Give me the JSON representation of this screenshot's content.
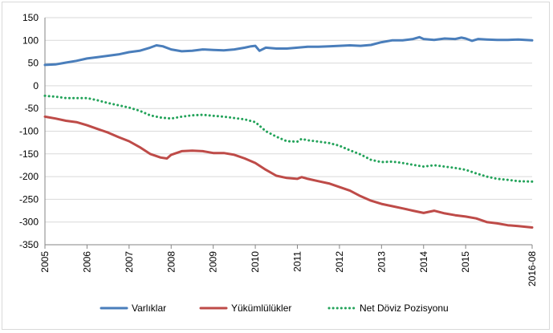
{
  "chart_data": {
    "type": "line",
    "title": "",
    "xlabel": "",
    "ylabel": "",
    "ylim": [
      -350,
      150
    ],
    "yticks": [
      150,
      100,
      50,
      0,
      -50,
      -100,
      -150,
      -200,
      -250,
      -300,
      -350
    ],
    "xlim": [
      2005.0,
      2016.58
    ],
    "xticks": [
      {
        "value": 2005,
        "label": "2005"
      },
      {
        "value": 2006,
        "label": "2006"
      },
      {
        "value": 2007,
        "label": "2007"
      },
      {
        "value": 2008,
        "label": "2008"
      },
      {
        "value": 2009,
        "label": "2009"
      },
      {
        "value": 2010,
        "label": "2010"
      },
      {
        "value": 2011,
        "label": "2011"
      },
      {
        "value": 2012,
        "label": "2012"
      },
      {
        "value": 2013,
        "label": "2013"
      },
      {
        "value": 2014,
        "label": "2014"
      },
      {
        "value": 2015,
        "label": "2015"
      },
      {
        "value": 2016.58,
        "label": "2016-08"
      }
    ],
    "grid": "horizontal",
    "legend_position": "bottom",
    "series": [
      {
        "name": "Varlıklar",
        "color": "#4a7ebb",
        "style": "solid",
        "points": [
          [
            2005.0,
            46
          ],
          [
            2005.25,
            47
          ],
          [
            2005.5,
            51
          ],
          [
            2005.75,
            55
          ],
          [
            2006.0,
            60
          ],
          [
            2006.25,
            63
          ],
          [
            2006.5,
            66
          ],
          [
            2006.75,
            69
          ],
          [
            2007.0,
            74
          ],
          [
            2007.25,
            77
          ],
          [
            2007.5,
            84
          ],
          [
            2007.65,
            89
          ],
          [
            2007.8,
            87
          ],
          [
            2008.0,
            80
          ],
          [
            2008.25,
            76
          ],
          [
            2008.5,
            77
          ],
          [
            2008.75,
            80
          ],
          [
            2009.0,
            79
          ],
          [
            2009.25,
            78
          ],
          [
            2009.5,
            80
          ],
          [
            2009.75,
            84
          ],
          [
            2009.9,
            87
          ],
          [
            2010.0,
            88
          ],
          [
            2010.1,
            77
          ],
          [
            2010.25,
            84
          ],
          [
            2010.5,
            82
          ],
          [
            2010.75,
            82
          ],
          [
            2011.0,
            84
          ],
          [
            2011.25,
            86
          ],
          [
            2011.5,
            86
          ],
          [
            2011.75,
            87
          ],
          [
            2012.0,
            88
          ],
          [
            2012.25,
            89
          ],
          [
            2012.5,
            88
          ],
          [
            2012.75,
            90
          ],
          [
            2013.0,
            96
          ],
          [
            2013.25,
            100
          ],
          [
            2013.5,
            100
          ],
          [
            2013.75,
            103
          ],
          [
            2013.9,
            107
          ],
          [
            2014.0,
            103
          ],
          [
            2014.25,
            101
          ],
          [
            2014.5,
            104
          ],
          [
            2014.75,
            103
          ],
          [
            2014.9,
            106
          ],
          [
            2015.0,
            104
          ],
          [
            2015.15,
            99
          ],
          [
            2015.3,
            103
          ],
          [
            2015.5,
            102
          ],
          [
            2015.75,
            101
          ],
          [
            2016.0,
            101
          ],
          [
            2016.25,
            102
          ],
          [
            2016.58,
            100
          ]
        ]
      },
      {
        "name": "Yükümlülükler",
        "color": "#be4b48",
        "style": "solid",
        "points": [
          [
            2005.0,
            -68
          ],
          [
            2005.25,
            -72
          ],
          [
            2005.5,
            -77
          ],
          [
            2005.75,
            -80
          ],
          [
            2006.0,
            -87
          ],
          [
            2006.25,
            -95
          ],
          [
            2006.5,
            -103
          ],
          [
            2006.75,
            -113
          ],
          [
            2007.0,
            -122
          ],
          [
            2007.25,
            -135
          ],
          [
            2007.5,
            -150
          ],
          [
            2007.75,
            -158
          ],
          [
            2007.9,
            -160
          ],
          [
            2008.0,
            -152
          ],
          [
            2008.25,
            -144
          ],
          [
            2008.5,
            -143
          ],
          [
            2008.75,
            -144
          ],
          [
            2009.0,
            -148
          ],
          [
            2009.25,
            -148
          ],
          [
            2009.5,
            -152
          ],
          [
            2009.75,
            -160
          ],
          [
            2010.0,
            -170
          ],
          [
            2010.25,
            -185
          ],
          [
            2010.5,
            -198
          ],
          [
            2010.75,
            -203
          ],
          [
            2011.0,
            -205
          ],
          [
            2011.1,
            -201
          ],
          [
            2011.25,
            -205
          ],
          [
            2011.5,
            -210
          ],
          [
            2011.75,
            -215
          ],
          [
            2012.0,
            -223
          ],
          [
            2012.25,
            -231
          ],
          [
            2012.5,
            -243
          ],
          [
            2012.75,
            -253
          ],
          [
            2013.0,
            -260
          ],
          [
            2013.25,
            -265
          ],
          [
            2013.5,
            -270
          ],
          [
            2013.75,
            -275
          ],
          [
            2014.0,
            -280
          ],
          [
            2014.25,
            -275
          ],
          [
            2014.5,
            -281
          ],
          [
            2014.75,
            -285
          ],
          [
            2015.0,
            -288
          ],
          [
            2015.25,
            -292
          ],
          [
            2015.5,
            -300
          ],
          [
            2015.75,
            -303
          ],
          [
            2016.0,
            -307
          ],
          [
            2016.25,
            -309
          ],
          [
            2016.58,
            -312
          ]
        ]
      },
      {
        "name": "Net Döviz Pozisyonu",
        "color": "#23a35a",
        "style": "dotted",
        "points": [
          [
            2005.0,
            -22
          ],
          [
            2005.25,
            -24
          ],
          [
            2005.5,
            -27
          ],
          [
            2005.75,
            -27
          ],
          [
            2006.0,
            -27
          ],
          [
            2006.25,
            -32
          ],
          [
            2006.5,
            -38
          ],
          [
            2006.75,
            -43
          ],
          [
            2007.0,
            -48
          ],
          [
            2007.25,
            -55
          ],
          [
            2007.5,
            -65
          ],
          [
            2007.75,
            -70
          ],
          [
            2008.0,
            -72
          ],
          [
            2008.25,
            -68
          ],
          [
            2008.5,
            -65
          ],
          [
            2008.75,
            -64
          ],
          [
            2009.0,
            -66
          ],
          [
            2009.25,
            -68
          ],
          [
            2009.5,
            -71
          ],
          [
            2009.75,
            -74
          ],
          [
            2010.0,
            -80
          ],
          [
            2010.25,
            -100
          ],
          [
            2010.5,
            -112
          ],
          [
            2010.75,
            -122
          ],
          [
            2011.0,
            -123
          ],
          [
            2011.1,
            -117
          ],
          [
            2011.25,
            -120
          ],
          [
            2011.5,
            -123
          ],
          [
            2011.75,
            -126
          ],
          [
            2012.0,
            -132
          ],
          [
            2012.25,
            -142
          ],
          [
            2012.5,
            -151
          ],
          [
            2012.75,
            -163
          ],
          [
            2013.0,
            -168
          ],
          [
            2013.25,
            -167
          ],
          [
            2013.5,
            -170
          ],
          [
            2013.75,
            -174
          ],
          [
            2014.0,
            -178
          ],
          [
            2014.25,
            -175
          ],
          [
            2014.5,
            -178
          ],
          [
            2014.75,
            -181
          ],
          [
            2015.0,
            -185
          ],
          [
            2015.25,
            -193
          ],
          [
            2015.5,
            -200
          ],
          [
            2015.75,
            -205
          ],
          [
            2016.0,
            -207
          ],
          [
            2016.25,
            -210
          ],
          [
            2016.58,
            -211
          ]
        ]
      }
    ]
  }
}
